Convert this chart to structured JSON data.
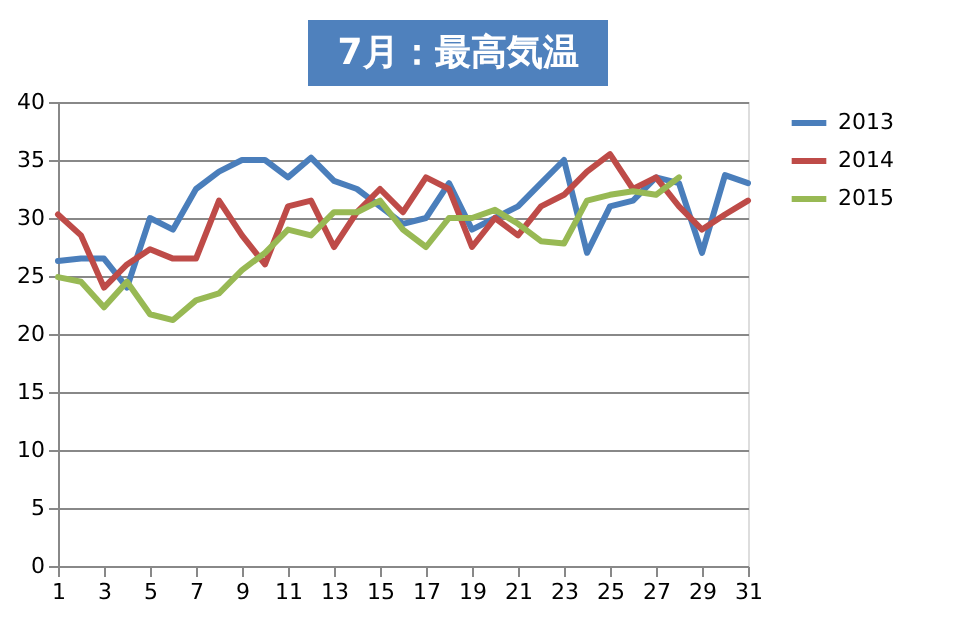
{
  "chart_data": {
    "type": "line",
    "title": "7月：最高気温",
    "x": [
      1,
      2,
      3,
      4,
      5,
      6,
      7,
      8,
      9,
      10,
      11,
      12,
      13,
      14,
      15,
      16,
      17,
      18,
      19,
      20,
      21,
      22,
      23,
      24,
      25,
      26,
      27,
      28,
      29,
      30,
      31
    ],
    "series": [
      {
        "name": "2013",
        "color": "#4a7ebb",
        "values": [
          26.3,
          26.5,
          26.5,
          24,
          30,
          29,
          32.5,
          34,
          35,
          35,
          33.5,
          35.2,
          33.2,
          32.5,
          31,
          29.5,
          30,
          33,
          29,
          30,
          31,
          33,
          35,
          27,
          31,
          31.5,
          33.5,
          33,
          27,
          33.7,
          33
        ]
      },
      {
        "name": "2014",
        "color": "#be4b48",
        "values": [
          30.3,
          28.5,
          24,
          26,
          27.3,
          26.5,
          26.5,
          31.5,
          28.5,
          26,
          31,
          31.5,
          27.5,
          30.5,
          32.5,
          30.5,
          33.5,
          32.5,
          27.5,
          30,
          28.5,
          31,
          32,
          34,
          35.5,
          32.5,
          33.5,
          31,
          29,
          30.3,
          31.5
        ]
      },
      {
        "name": "2015",
        "color": "#98b954",
        "values": [
          24.9,
          24.5,
          22.3,
          24.5,
          21.7,
          21.2,
          22.9,
          23.5,
          25.5,
          27,
          29,
          28.5,
          30.5,
          30.5,
          31.5,
          29,
          27.5,
          30,
          30,
          30.7,
          29.5,
          28,
          27.8,
          31.5,
          32,
          32.3,
          32,
          33.5,
          null,
          null,
          null
        ]
      }
    ],
    "xlim": [
      1,
      31
    ],
    "xticks": [
      1,
      3,
      5,
      7,
      9,
      11,
      13,
      15,
      17,
      19,
      21,
      23,
      25,
      27,
      29,
      31
    ],
    "ylim": [
      0,
      40
    ],
    "yticks": [
      0,
      5,
      10,
      15,
      20,
      25,
      30,
      35,
      40
    ],
    "grid": "y",
    "legend": "right",
    "marker": "none",
    "line_style": "solid"
  }
}
